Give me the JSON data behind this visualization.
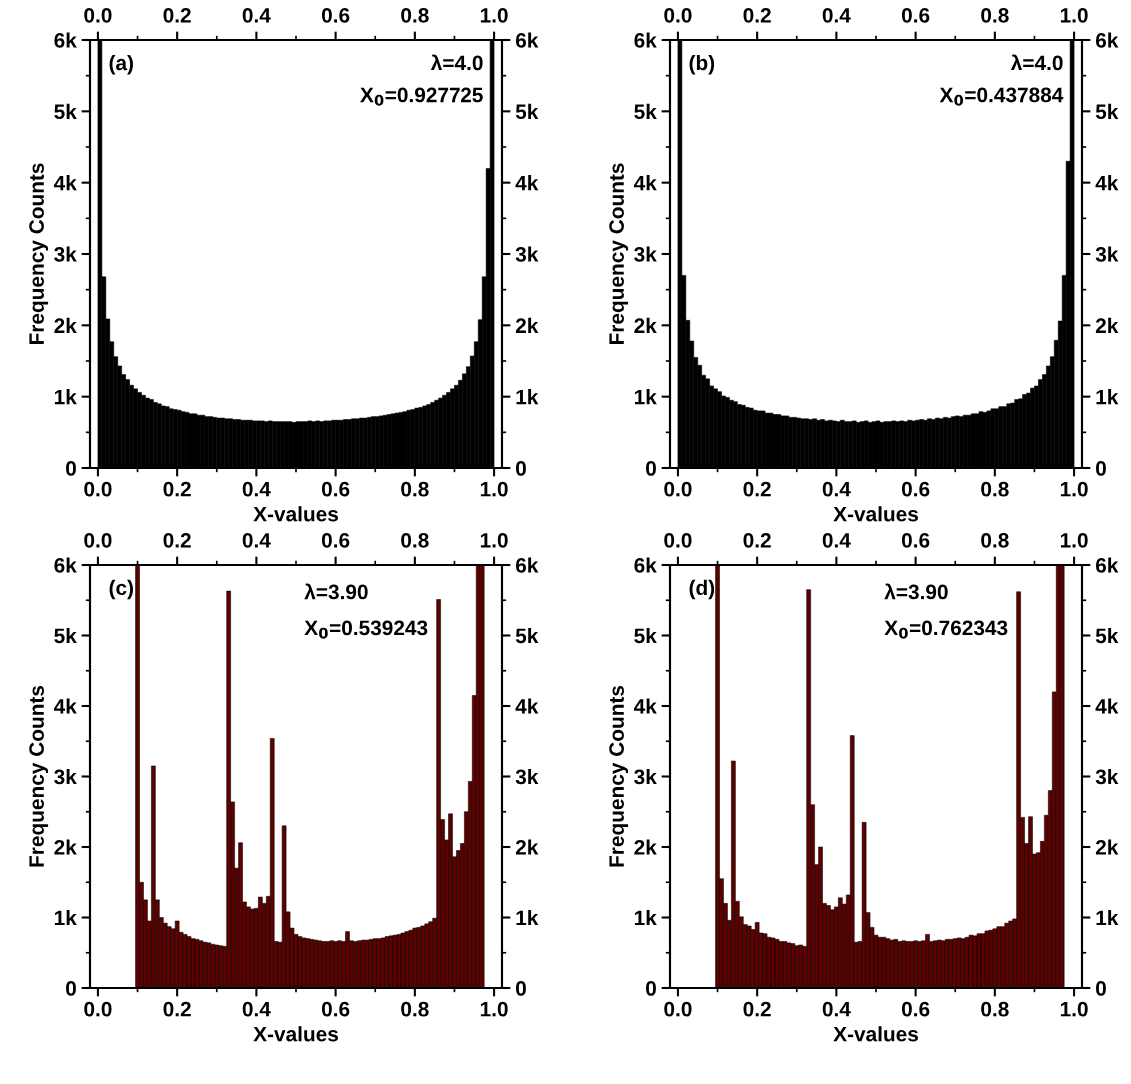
{
  "chart_data": [
    {
      "type": "histogram",
      "color": "#000000",
      "xlabel": "X-values",
      "ylabel": "Frequency Counts",
      "annotations": [
        "(a)",
        "λ=4.0",
        "X$_{0}$=0.927725"
      ],
      "bins": [
        0,
        0.01,
        0.02,
        0.03,
        0.04,
        0.05,
        0.06,
        0.07,
        0.08,
        0.09,
        0.1,
        0.11,
        0.12,
        0.13,
        0.14,
        0.15,
        0.16,
        0.17,
        0.18,
        0.19,
        0.2,
        0.21,
        0.22,
        0.23,
        0.24,
        0.25,
        0.26,
        0.27,
        0.28,
        0.29,
        0.3,
        0.31,
        0.32,
        0.33,
        0.34,
        0.35,
        0.36,
        0.37,
        0.38,
        0.39,
        0.4,
        0.41,
        0.42,
        0.43,
        0.44,
        0.45,
        0.46,
        0.47,
        0.48,
        0.49,
        0.5,
        0.51,
        0.52,
        0.53,
        0.54,
        0.55,
        0.56,
        0.57,
        0.58,
        0.59,
        0.6,
        0.61,
        0.62,
        0.63,
        0.64,
        0.65,
        0.66,
        0.67,
        0.68,
        0.69,
        0.7,
        0.71,
        0.72,
        0.73,
        0.74,
        0.75,
        0.76,
        0.77,
        0.78,
        0.79,
        0.8,
        0.81,
        0.82,
        0.83,
        0.84,
        0.85,
        0.86,
        0.87,
        0.88,
        0.89,
        0.9,
        0.91,
        0.92,
        0.93,
        0.94,
        0.95,
        0.96,
        0.97,
        0.98,
        0.99,
        1.0
      ],
      "values": [
        6000,
        2680,
        2090,
        1770,
        1560,
        1430,
        1310,
        1240,
        1160,
        1110,
        1060,
        1020,
        980,
        960,
        920,
        900,
        870,
        860,
        830,
        820,
        810,
        790,
        780,
        760,
        760,
        740,
        740,
        720,
        720,
        710,
        700,
        700,
        690,
        690,
        680,
        680,
        670,
        670,
        670,
        660,
        660,
        660,
        650,
        660,
        650,
        650,
        650,
        650,
        650,
        640,
        650,
        650,
        650,
        660,
        650,
        660,
        650,
        660,
        660,
        670,
        670,
        670,
        680,
        680,
        690,
        690,
        700,
        700,
        710,
        720,
        720,
        730,
        740,
        750,
        760,
        770,
        780,
        790,
        810,
        820,
        840,
        850,
        870,
        890,
        920,
        950,
        980,
        1020,
        1060,
        1110,
        1160,
        1230,
        1320,
        1420,
        1570,
        1770,
        2080,
        2680,
        4200,
        6000
      ],
      "xlim": [
        -0.02,
        1.02
      ],
      "xticks": [
        {
          "value": 0,
          "label": "0.0"
        },
        0.2,
        0.4,
        0.6,
        0.8,
        {
          "value": 1,
          "label": "1.0"
        },
        {
          "value": 0.1,
          "label": null
        },
        {
          "value": 0.3,
          "label": null
        },
        {
          "value": 0.5,
          "label": null
        },
        {
          "value": 0.7,
          "label": null
        },
        {
          "value": 0.9,
          "label": null
        }
      ],
      "x2lim": [
        -0.02,
        1.02
      ],
      "x2ticks": [
        {
          "value": 0,
          "label": "0.0"
        },
        0.2,
        0.4,
        0.6,
        0.8,
        {
          "value": 1,
          "label": "1.0"
        },
        {
          "value": 0.1,
          "label": null
        },
        {
          "value": 0.3,
          "label": null
        },
        {
          "value": 0.5,
          "label": null
        },
        {
          "value": 0.7,
          "label": null
        },
        {
          "value": 0.9,
          "label": null
        }
      ],
      "ylim": [
        0,
        6000
      ],
      "yticks": [
        0,
        {
          "value": 1000,
          "label": "1k"
        },
        {
          "value": 2000,
          "label": "2k"
        },
        {
          "value": 3000,
          "label": "3k"
        },
        {
          "value": 4000,
          "label": "4k"
        },
        {
          "value": 5000,
          "label": "5k"
        },
        {
          "value": 6000,
          "label": "6k"
        },
        {
          "value": 500,
          "label": null
        },
        {
          "value": 1500,
          "label": null
        },
        {
          "value": 2500,
          "label": null
        },
        {
          "value": 3500,
          "label": null
        },
        {
          "value": 4500,
          "label": null
        },
        {
          "value": 5500,
          "label": null
        }
      ],
      "y2lim": [
        0,
        6000
      ],
      "y2ticks": [
        0,
        {
          "value": 1000,
          "label": "1k"
        },
        {
          "value": 2000,
          "label": "2k"
        },
        {
          "value": 3000,
          "label": "3k"
        },
        {
          "value": 4000,
          "label": "4k"
        },
        {
          "value": 5000,
          "label": "5k"
        },
        {
          "value": 6000,
          "label": "6k"
        },
        {
          "value": 500,
          "label": null
        },
        {
          "value": 1500,
          "label": null
        },
        {
          "value": 2500,
          "label": null
        },
        {
          "value": 3500,
          "label": null
        },
        {
          "value": 4500,
          "label": null
        },
        {
          "value": 5500,
          "label": null
        }
      ]
    },
    {
      "type": "histogram",
      "color": "#000000",
      "xlabel": "X-values",
      "ylabel": "Frequency Counts",
      "annotations": [
        "(b)",
        "λ=4.0",
        "X$_{0}$=0.437884"
      ],
      "bins": [
        0,
        0.01,
        0.02,
        0.03,
        0.04,
        0.05,
        0.06,
        0.07,
        0.08,
        0.09,
        0.1,
        0.11,
        0.12,
        0.13,
        0.14,
        0.15,
        0.16,
        0.17,
        0.18,
        0.19,
        0.2,
        0.21,
        0.22,
        0.23,
        0.24,
        0.25,
        0.26,
        0.27,
        0.28,
        0.29,
        0.3,
        0.31,
        0.32,
        0.33,
        0.34,
        0.35,
        0.36,
        0.37,
        0.38,
        0.39,
        0.4,
        0.41,
        0.42,
        0.43,
        0.44,
        0.45,
        0.46,
        0.47,
        0.48,
        0.49,
        0.5,
        0.51,
        0.52,
        0.53,
        0.54,
        0.55,
        0.56,
        0.57,
        0.58,
        0.59,
        0.6,
        0.61,
        0.62,
        0.63,
        0.64,
        0.65,
        0.66,
        0.67,
        0.68,
        0.69,
        0.7,
        0.71,
        0.72,
        0.73,
        0.74,
        0.75,
        0.76,
        0.77,
        0.78,
        0.79,
        0.8,
        0.81,
        0.82,
        0.83,
        0.84,
        0.85,
        0.86,
        0.87,
        0.88,
        0.89,
        0.9,
        0.91,
        0.92,
        0.93,
        0.94,
        0.95,
        0.96,
        0.97,
        0.98,
        0.99,
        1.0
      ],
      "values": [
        6000,
        2700,
        2070,
        1780,
        1550,
        1440,
        1300,
        1250,
        1150,
        1110,
        1070,
        1010,
        990,
        950,
        930,
        890,
        880,
        850,
        840,
        810,
        800,
        800,
        770,
        770,
        750,
        750,
        730,
        730,
        710,
        710,
        700,
        690,
        690,
        680,
        690,
        670,
        680,
        660,
        670,
        660,
        650,
        670,
        650,
        650,
        660,
        640,
        650,
        660,
        640,
        650,
        660,
        640,
        650,
        650,
        660,
        650,
        660,
        650,
        670,
        660,
        670,
        680,
        670,
        690,
        680,
        700,
        690,
        710,
        700,
        720,
        730,
        720,
        740,
        740,
        760,
        760,
        790,
        780,
        800,
        830,
        830,
        860,
        860,
        900,
        910,
        960,
        970,
        1030,
        1050,
        1120,
        1150,
        1240,
        1310,
        1430,
        1560,
        1790,
        2060,
        2700,
        4300,
        6000
      ],
      "xlim": [
        -0.02,
        1.02
      ],
      "xticks": [
        {
          "value": 0,
          "label": "0.0"
        },
        0.2,
        0.4,
        0.6,
        0.8,
        {
          "value": 1,
          "label": "1.0"
        },
        {
          "value": 0.1,
          "label": null
        },
        {
          "value": 0.3,
          "label": null
        },
        {
          "value": 0.5,
          "label": null
        },
        {
          "value": 0.7,
          "label": null
        },
        {
          "value": 0.9,
          "label": null
        }
      ],
      "x2lim": [
        -0.02,
        1.02
      ],
      "x2ticks": [
        {
          "value": 0,
          "label": "0.0"
        },
        0.2,
        0.4,
        0.6,
        0.8,
        {
          "value": 1,
          "label": "1.0"
        },
        {
          "value": 0.1,
          "label": null
        },
        {
          "value": 0.3,
          "label": null
        },
        {
          "value": 0.5,
          "label": null
        },
        {
          "value": 0.7,
          "label": null
        },
        {
          "value": 0.9,
          "label": null
        }
      ],
      "ylim": [
        0,
        6000
      ],
      "yticks": [
        0,
        {
          "value": 1000,
          "label": "1k"
        },
        {
          "value": 2000,
          "label": "2k"
        },
        {
          "value": 3000,
          "label": "3k"
        },
        {
          "value": 4000,
          "label": "4k"
        },
        {
          "value": 5000,
          "label": "5k"
        },
        {
          "value": 6000,
          "label": "6k"
        },
        {
          "value": 500,
          "label": null
        },
        {
          "value": 1500,
          "label": null
        },
        {
          "value": 2500,
          "label": null
        },
        {
          "value": 3500,
          "label": null
        },
        {
          "value": 4500,
          "label": null
        },
        {
          "value": 5500,
          "label": null
        }
      ],
      "y2lim": [
        0,
        6000
      ],
      "y2ticks": [
        0,
        {
          "value": 1000,
          "label": "1k"
        },
        {
          "value": 2000,
          "label": "2k"
        },
        {
          "value": 3000,
          "label": "3k"
        },
        {
          "value": 4000,
          "label": "4k"
        },
        {
          "value": 5000,
          "label": "5k"
        },
        {
          "value": 6000,
          "label": "6k"
        },
        {
          "value": 500,
          "label": null
        },
        {
          "value": 1500,
          "label": null
        },
        {
          "value": 2500,
          "label": null
        },
        {
          "value": 3500,
          "label": null
        },
        {
          "value": 4500,
          "label": null
        },
        {
          "value": 5500,
          "label": null
        }
      ]
    },
    {
      "type": "histogram",
      "color": "#5c0000",
      "xlabel": "X-values",
      "ylabel": "Frequency Counts",
      "annotations": [
        "(c)",
        "λ=3.90",
        "X$_{0}$=0.539243"
      ],
      "bins": [
        0.095,
        0.105,
        0.115,
        0.125,
        0.135,
        0.145,
        0.155,
        0.165,
        0.175,
        0.185,
        0.195,
        0.205,
        0.215,
        0.225,
        0.235,
        0.245,
        0.255,
        0.265,
        0.275,
        0.285,
        0.295,
        0.305,
        0.315,
        0.325,
        0.335,
        0.345,
        0.355,
        0.365,
        0.375,
        0.385,
        0.395,
        0.405,
        0.415,
        0.425,
        0.435,
        0.445,
        0.455,
        0.465,
        0.475,
        0.485,
        0.495,
        0.505,
        0.515,
        0.525,
        0.535,
        0.545,
        0.555,
        0.565,
        0.575,
        0.585,
        0.595,
        0.605,
        0.615,
        0.625,
        0.635,
        0.645,
        0.655,
        0.665,
        0.675,
        0.685,
        0.695,
        0.705,
        0.715,
        0.725,
        0.735,
        0.745,
        0.755,
        0.765,
        0.775,
        0.785,
        0.795,
        0.805,
        0.815,
        0.825,
        0.835,
        0.845,
        0.855,
        0.865,
        0.875,
        0.885,
        0.895,
        0.905,
        0.915,
        0.925,
        0.935,
        0.945,
        0.955,
        0.965,
        0.975
      ],
      "values": [
        6000,
        1500,
        1250,
        950,
        3150,
        1250,
        1000,
        920,
        870,
        840,
        950,
        790,
        760,
        730,
        700,
        690,
        670,
        650,
        640,
        620,
        610,
        600,
        590,
        5630,
        2640,
        1700,
        2060,
        1220,
        1150,
        1120,
        1130,
        1290,
        1200,
        1300,
        3540,
        660,
        650,
        2300,
        1080,
        850,
        760,
        730,
        710,
        700,
        690,
        680,
        670,
        660,
        660,
        670,
        660,
        670,
        660,
        800,
        670,
        660,
        670,
        680,
        680,
        690,
        700,
        700,
        710,
        730,
        740,
        750,
        760,
        780,
        800,
        820,
        850,
        860,
        880,
        910,
        940,
        990,
        5510,
        2390,
        2100,
        2470,
        1860,
        1950,
        2050,
        2500,
        2930,
        4150,
        6000,
        6000
      ],
      "xlim": [
        -0.02,
        1.02
      ],
      "xticks": [
        {
          "value": 0,
          "label": "0.0"
        },
        0.2,
        0.4,
        0.6,
        0.8,
        {
          "value": 1,
          "label": "1.0"
        },
        {
          "value": 0.1,
          "label": null
        },
        {
          "value": 0.3,
          "label": null
        },
        {
          "value": 0.5,
          "label": null
        },
        {
          "value": 0.7,
          "label": null
        },
        {
          "value": 0.9,
          "label": null
        }
      ],
      "x2lim": [
        -0.02,
        1.02
      ],
      "x2ticks": [
        {
          "value": 0,
          "label": "0.0"
        },
        0.2,
        0.4,
        0.6,
        0.8,
        {
          "value": 1,
          "label": "1.0"
        },
        {
          "value": 0.1,
          "label": null
        },
        {
          "value": 0.3,
          "label": null
        },
        {
          "value": 0.5,
          "label": null
        },
        {
          "value": 0.7,
          "label": null
        },
        {
          "value": 0.9,
          "label": null
        }
      ],
      "ylim": [
        0,
        6000
      ],
      "yticks": [
        0,
        {
          "value": 1000,
          "label": "1k"
        },
        {
          "value": 2000,
          "label": "2k"
        },
        {
          "value": 3000,
          "label": "3k"
        },
        {
          "value": 4000,
          "label": "4k"
        },
        {
          "value": 5000,
          "label": "5k"
        },
        {
          "value": 6000,
          "label": "6k"
        },
        {
          "value": 500,
          "label": null
        },
        {
          "value": 1500,
          "label": null
        },
        {
          "value": 2500,
          "label": null
        },
        {
          "value": 3500,
          "label": null
        },
        {
          "value": 4500,
          "label": null
        },
        {
          "value": 5500,
          "label": null
        }
      ],
      "y2lim": [
        0,
        6000
      ],
      "y2ticks": [
        0,
        {
          "value": 1000,
          "label": "1k"
        },
        {
          "value": 2000,
          "label": "2k"
        },
        {
          "value": 3000,
          "label": "3k"
        },
        {
          "value": 4000,
          "label": "4k"
        },
        {
          "value": 5000,
          "label": "5k"
        },
        {
          "value": 6000,
          "label": "6k"
        },
        {
          "value": 500,
          "label": null
        },
        {
          "value": 1500,
          "label": null
        },
        {
          "value": 2500,
          "label": null
        },
        {
          "value": 3500,
          "label": null
        },
        {
          "value": 4500,
          "label": null
        },
        {
          "value": 5500,
          "label": null
        }
      ]
    },
    {
      "type": "histogram",
      "color": "#5c0000",
      "xlabel": "X-values",
      "ylabel": "Frequency Counts",
      "annotations": [
        "(d)",
        "λ=3.90",
        "X$_{0}$=0.762343"
      ],
      "bins": [
        0.095,
        0.105,
        0.115,
        0.125,
        0.135,
        0.145,
        0.155,
        0.165,
        0.175,
        0.185,
        0.195,
        0.205,
        0.215,
        0.225,
        0.235,
        0.245,
        0.255,
        0.265,
        0.275,
        0.285,
        0.295,
        0.305,
        0.315,
        0.325,
        0.335,
        0.345,
        0.355,
        0.365,
        0.375,
        0.385,
        0.395,
        0.405,
        0.415,
        0.425,
        0.435,
        0.445,
        0.455,
        0.465,
        0.475,
        0.485,
        0.495,
        0.505,
        0.515,
        0.525,
        0.535,
        0.545,
        0.555,
        0.565,
        0.575,
        0.585,
        0.595,
        0.605,
        0.615,
        0.625,
        0.635,
        0.645,
        0.655,
        0.665,
        0.675,
        0.685,
        0.695,
        0.705,
        0.715,
        0.725,
        0.735,
        0.745,
        0.755,
        0.765,
        0.775,
        0.785,
        0.795,
        0.805,
        0.815,
        0.825,
        0.835,
        0.845,
        0.855,
        0.865,
        0.875,
        0.885,
        0.895,
        0.905,
        0.915,
        0.925,
        0.935,
        0.945,
        0.955,
        0.965,
        0.975
      ],
      "values": [
        6000,
        1550,
        1200,
        960,
        3220,
        1230,
        1010,
        900,
        880,
        830,
        930,
        780,
        770,
        720,
        710,
        690,
        660,
        660,
        640,
        630,
        600,
        610,
        590,
        5650,
        2600,
        1750,
        2000,
        1200,
        1170,
        1110,
        1150,
        1280,
        1190,
        1320,
        3580,
        650,
        660,
        2350,
        1070,
        860,
        750,
        720,
        720,
        700,
        680,
        690,
        660,
        670,
        660,
        660,
        670,
        660,
        670,
        760,
        660,
        670,
        680,
        670,
        690,
        690,
        700,
        710,
        700,
        720,
        750,
        740,
        770,
        770,
        810,
        820,
        840,
        870,
        870,
        920,
        950,
        980,
        5620,
        2420,
        2050,
        2430,
        1900,
        1920,
        2080,
        2450,
        2800,
        4200,
        6000,
        6000
      ],
      "xlim": [
        -0.02,
        1.02
      ],
      "xticks": [
        {
          "value": 0,
          "label": "0.0"
        },
        0.2,
        0.4,
        0.6,
        0.8,
        {
          "value": 1,
          "label": "1.0"
        },
        {
          "value": 0.1,
          "label": null
        },
        {
          "value": 0.3,
          "label": null
        },
        {
          "value": 0.5,
          "label": null
        },
        {
          "value": 0.7,
          "label": null
        },
        {
          "value": 0.9,
          "label": null
        }
      ],
      "x2lim": [
        -0.02,
        1.02
      ],
      "x2ticks": [
        {
          "value": 0,
          "label": "0.0"
        },
        0.2,
        0.4,
        0.6,
        0.8,
        {
          "value": 1,
          "label": "1.0"
        },
        {
          "value": 0.1,
          "label": null
        },
        {
          "value": 0.3,
          "label": null
        },
        {
          "value": 0.5,
          "label": null
        },
        {
          "value": 0.7,
          "label": null
        },
        {
          "value": 0.9,
          "label": null
        }
      ],
      "ylim": [
        0,
        6000
      ],
      "yticks": [
        0,
        {
          "value": 1000,
          "label": "1k"
        },
        {
          "value": 2000,
          "label": "2k"
        },
        {
          "value": 3000,
          "label": "3k"
        },
        {
          "value": 4000,
          "label": "4k"
        },
        {
          "value": 5000,
          "label": "5k"
        },
        {
          "value": 6000,
          "label": "6k"
        },
        {
          "value": 500,
          "label": null
        },
        {
          "value": 1500,
          "label": null
        },
        {
          "value": 2500,
          "label": null
        },
        {
          "value": 3500,
          "label": null
        },
        {
          "value": 4500,
          "label": null
        },
        {
          "value": 5500,
          "label": null
        }
      ],
      "y2lim": [
        0,
        6000
      ],
      "y2ticks": [
        0,
        {
          "value": 1000,
          "label": "1k"
        },
        {
          "value": 2000,
          "label": "2k"
        },
        {
          "value": 3000,
          "label": "3k"
        },
        {
          "value": 4000,
          "label": "4k"
        },
        {
          "value": 5000,
          "label": "5k"
        },
        {
          "value": 6000,
          "label": "6k"
        },
        {
          "value": 500,
          "label": null
        },
        {
          "value": 1500,
          "label": null
        },
        {
          "value": 2500,
          "label": null
        },
        {
          "value": 3500,
          "label": null
        },
        {
          "value": 4500,
          "label": null
        },
        {
          "value": 5500,
          "label": null
        }
      ]
    }
  ]
}
